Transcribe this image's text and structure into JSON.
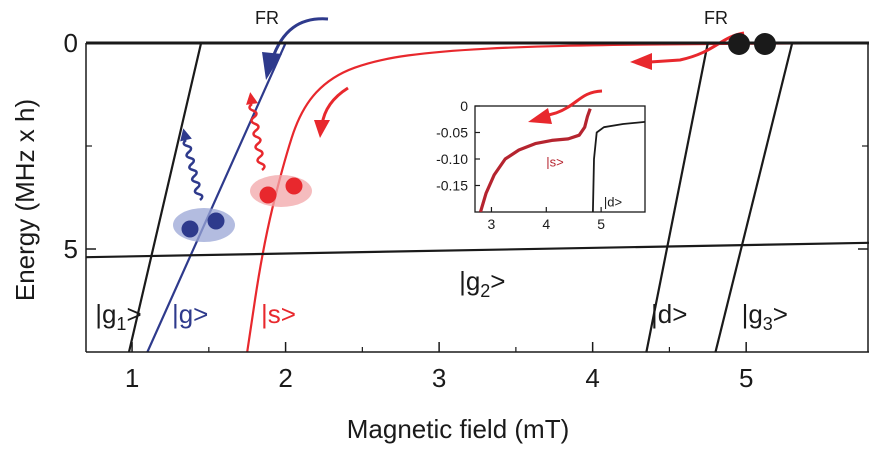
{
  "chart_data": {
    "type": "line",
    "xlabel": "Magnetic field (mT)",
    "ylabel": "Energy (MHz x h)",
    "xlim": [
      0.7,
      5.8
    ],
    "ylim": [
      7.5,
      0
    ],
    "x_ticks": [
      "1",
      "2",
      "3",
      "4",
      "5"
    ],
    "y_ticks": [
      "0",
      "5"
    ],
    "fr_labels": [
      "FR",
      "FR"
    ],
    "series": [
      {
        "name": "|g1>",
        "color": "#1a1a1a",
        "points": [
          [
            0.98,
            7.5
          ],
          [
            1.45,
            0
          ]
        ]
      },
      {
        "name": "|g>",
        "color": "#2e3a8c",
        "points": [
          [
            1.1,
            7.5
          ],
          [
            2.0,
            0
          ]
        ]
      },
      {
        "name": "|s>",
        "color": "#e8282d",
        "points": [
          [
            1.75,
            7.5
          ],
          [
            1.85,
            5.0
          ],
          [
            1.98,
            3.0
          ],
          [
            2.1,
            1.6
          ],
          [
            2.3,
            0.8
          ],
          [
            2.6,
            0.4
          ],
          [
            3.0,
            0.2
          ],
          [
            3.6,
            0.08
          ],
          [
            4.4,
            0.03
          ],
          [
            5.8,
            0.0
          ]
        ]
      },
      {
        "name": "|g2>",
        "color": "#1a1a1a",
        "points": [
          [
            0.7,
            5.2
          ],
          [
            5.8,
            4.85
          ]
        ]
      },
      {
        "name": "|d>",
        "color": "#1a1a1a",
        "points": [
          [
            4.35,
            7.5
          ],
          [
            4.75,
            0
          ]
        ]
      },
      {
        "name": "|g3>",
        "color": "#1a1a1a",
        "points": [
          [
            4.8,
            7.5
          ],
          [
            5.3,
            0
          ]
        ]
      }
    ],
    "curve_labels": [
      {
        "text": "|g",
        "sub": "1",
        "end": ">",
        "color": "#1a1a1a",
        "x": 0.76,
        "y": 6.6
      },
      {
        "text": "|g>",
        "sub": "",
        "end": "",
        "color": "#2e3a8c",
        "x": 1.26,
        "y": 6.6
      },
      {
        "text": "|s>",
        "sub": "",
        "end": "",
        "color": "#e8282d",
        "x": 1.84,
        "y": 6.6
      },
      {
        "text": "|g",
        "sub": "2",
        "end": ">",
        "color": "#1a1a1a",
        "x": 3.13,
        "y": 5.8
      },
      {
        "text": "|d>",
        "sub": "",
        "end": "",
        "color": "#1a1a1a",
        "x": 4.38,
        "y": 6.6
      },
      {
        "text": "|g",
        "sub": "3",
        "end": ">",
        "color": "#1a1a1a",
        "x": 4.97,
        "y": 6.6
      }
    ],
    "inset": {
      "xlim": [
        2.7,
        5.8
      ],
      "ylim": [
        -0.2,
        0
      ],
      "x_ticks": [
        "3",
        "4",
        "5"
      ],
      "y_ticks": [
        "0",
        "-0.05",
        "-0.10",
        "-0.15"
      ],
      "series": [
        {
          "name": "|s>",
          "color": "#b5242f",
          "points": [
            [
              2.8,
              -0.2
            ],
            [
              2.9,
              -0.165
            ],
            [
              3.05,
              -0.13
            ],
            [
              3.25,
              -0.1
            ],
            [
              3.5,
              -0.083
            ],
            [
              3.8,
              -0.071
            ],
            [
              4.1,
              -0.065
            ],
            [
              4.4,
              -0.062
            ],
            [
              4.6,
              -0.055
            ],
            [
              4.7,
              -0.04
            ],
            [
              4.75,
              -0.02
            ],
            [
              4.8,
              -0.005
            ]
          ]
        },
        {
          "name": "|d>",
          "color": "#1a1a1a",
          "points": [
            [
              4.85,
              -0.2
            ],
            [
              4.87,
              -0.1
            ],
            [
              4.92,
              -0.05
            ],
            [
              5.05,
              -0.04
            ],
            [
              5.4,
              -0.034
            ],
            [
              5.8,
              -0.03
            ]
          ]
        }
      ],
      "labels": [
        {
          "text": "|s>",
          "color": "#b5242f",
          "x": 4.0,
          "y": -0.105
        },
        {
          "text": "|d>",
          "color": "#1a1a1a",
          "x": 5.05,
          "y": -0.18
        }
      ]
    }
  }
}
